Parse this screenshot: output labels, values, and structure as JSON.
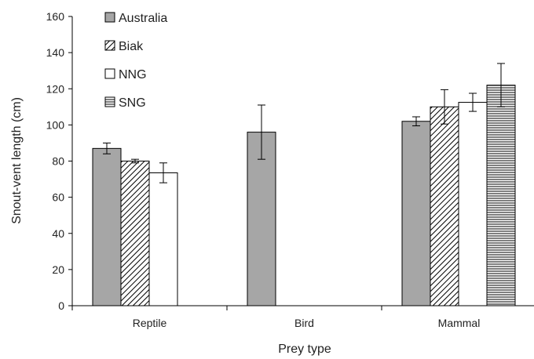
{
  "chart_data": {
    "type": "bar",
    "title": "",
    "xlabel": "Prey type",
    "ylabel": "Snout-vent length (cm)",
    "ylim": [
      0,
      160
    ],
    "yticks": [
      0,
      20,
      40,
      60,
      80,
      100,
      120,
      140,
      160
    ],
    "grid": false,
    "legend_position": "top-left",
    "categories": [
      "Reptile",
      "Bird",
      "Mammal"
    ],
    "series": [
      {
        "name": "Australia",
        "values": [
          87,
          96,
          102
        ],
        "errors": [
          3,
          15,
          2.5
        ],
        "fill": "solid-gray",
        "color": "#a6a6a6"
      },
      {
        "name": "Biak",
        "values": [
          80,
          null,
          110
        ],
        "errors": [
          1,
          null,
          9.5
        ],
        "fill": "diagonal-hatch",
        "color": "#000000"
      },
      {
        "name": "NNG",
        "values": [
          73.5,
          null,
          112.5
        ],
        "errors": [
          5.5,
          null,
          5
        ],
        "fill": "white",
        "color": "#ffffff"
      },
      {
        "name": "SNG",
        "values": [
          null,
          null,
          122
        ],
        "errors": [
          null,
          null,
          12
        ],
        "fill": "horizontal-hatch",
        "color": "#000000"
      }
    ]
  }
}
